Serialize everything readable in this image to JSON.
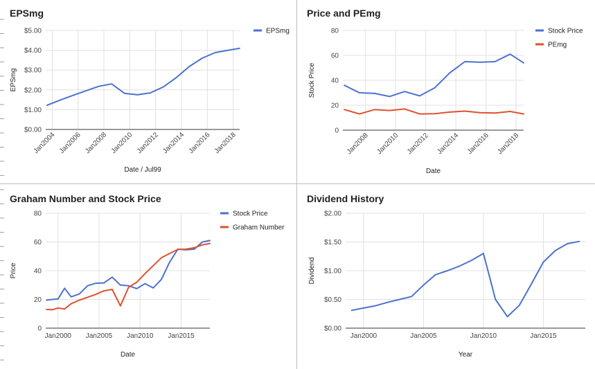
{
  "charts": [
    {
      "title": "EPSmg",
      "chart_data": {
        "type": "line",
        "xlabel": "Date / Jul99",
        "ylabel": "EPSmg",
        "x_ticks": [
          "Jan2004",
          "Jan2006",
          "Jan2008",
          "Jan2010",
          "Jan2012",
          "Jan2014",
          "Jan2016",
          "Jan2018"
        ],
        "x_tick_values": [
          2004,
          2006,
          2008,
          2010,
          2012,
          2014,
          2016,
          2018
        ],
        "y_ticks": [
          "$0.00",
          "$1.00",
          "$2.00",
          "$3.00",
          "$4.00",
          "$5.00"
        ],
        "y_tick_values": [
          0,
          1,
          2,
          3,
          4,
          5
        ],
        "xlim": [
          2003.5,
          2018.5
        ],
        "ylim": [
          0,
          5
        ],
        "legend_position": "top-right",
        "series": [
          {
            "name": "EPSmg",
            "color": "#4a72cf",
            "x": [
              2003.6,
              2004.6,
              2005.6,
              2006.6,
              2007.6,
              2008.6,
              2009.6,
              2010.6,
              2011.6,
              2012.6,
              2013.6,
              2014.6,
              2015.6,
              2016.6,
              2017.6,
              2018.5
            ],
            "y": [
              1.22,
              1.48,
              1.72,
              1.95,
              2.18,
              2.3,
              1.82,
              1.75,
              1.85,
              2.15,
              2.62,
              3.18,
              3.6,
              3.88,
              4.0,
              4.1
            ]
          }
        ]
      }
    },
    {
      "title": "Price and PEmg",
      "chart_data": {
        "type": "line",
        "xlabel": "Date",
        "ylabel": "Stock Price",
        "x_ticks": [
          "Jan2008",
          "Jan2010",
          "Jan2012",
          "Jan2014",
          "Jan2016",
          "Jan2018"
        ],
        "x_tick_values": [
          2008,
          2010,
          2012,
          2014,
          2016,
          2018
        ],
        "y_ticks": [
          "0",
          "20",
          "40",
          "60",
          "80"
        ],
        "y_tick_values": [
          0,
          20,
          40,
          60,
          80
        ],
        "xlim": [
          2006.5,
          2018.5
        ],
        "ylim": [
          0,
          80
        ],
        "legend_position": "top-right",
        "series": [
          {
            "name": "Stock Price",
            "color": "#4a72cf",
            "x": [
              2006.6,
              2007.6,
              2008.6,
              2009.6,
              2010.6,
              2011.6,
              2012.6,
              2013.6,
              2014.6,
              2015.6,
              2016.6,
              2017.6,
              2018.5
            ],
            "y": [
              36,
              30,
              29.5,
              27,
              31,
              27.5,
              34,
              46,
              55,
              54.5,
              55,
              61,
              54
            ]
          },
          {
            "name": "PEmg",
            "color": "#e0502d",
            "x": [
              2006.6,
              2007.6,
              2008.6,
              2009.6,
              2010.6,
              2011.6,
              2012.6,
              2013.6,
              2014.6,
              2015.6,
              2016.6,
              2017.6,
              2018.5
            ],
            "y": [
              16.5,
              13,
              16.5,
              15.8,
              17,
              13,
              13.2,
              14.5,
              15.3,
              14,
              13.8,
              15,
              13
            ]
          }
        ]
      }
    },
    {
      "title": "Graham Number and Stock Price",
      "chart_data": {
        "type": "line",
        "xlabel": "Date",
        "ylabel": "Price",
        "x_ticks": [
          "Jan2000",
          "Jan2005",
          "Jan2010",
          "Jan2015"
        ],
        "x_tick_values": [
          2000,
          2005,
          2010,
          2015
        ],
        "y_ticks": [
          "0",
          "20",
          "40",
          "60",
          "80"
        ],
        "y_tick_values": [
          0,
          20,
          40,
          60,
          80
        ],
        "xlim": [
          1998.5,
          2018.5
        ],
        "ylim": [
          0,
          80
        ],
        "legend_position": "top-right",
        "series": [
          {
            "name": "Stock Price",
            "color": "#4a72cf",
            "x": [
              1998.6,
              1999.3,
              2000,
              2000.8,
              2001.6,
              2002.6,
              2003.6,
              2004.6,
              2005.6,
              2006.6,
              2007.6,
              2008.6,
              2009.6,
              2010.6,
              2011.6,
              2012.6,
              2013.6,
              2014.6,
              2015.6,
              2016.6,
              2017.6,
              2018.5
            ],
            "y": [
              19.5,
              20,
              20.3,
              27.8,
              21.8,
              23.8,
              29.5,
              31.3,
              31.5,
              35.5,
              30,
              29.5,
              27.5,
              31,
              28,
              34,
              46,
              55,
              54.5,
              55,
              60,
              61
            ]
          },
          {
            "name": "Graham Number",
            "color": "#e0502d",
            "x": [
              1998.6,
              1999.3,
              2000,
              2000.8,
              2001.6,
              2002.6,
              2003.6,
              2004.6,
              2005.6,
              2006.6,
              2007.6,
              2008.6,
              2009.6,
              2010.6,
              2011.6,
              2012.6,
              2013.6,
              2014.6,
              2015.6,
              2016.6,
              2017.6,
              2018.5
            ],
            "y": [
              13,
              12.8,
              14,
              13.3,
              17,
              19.5,
              21.5,
              23.5,
              26,
              27,
              15.5,
              28.5,
              32,
              38,
              43.5,
              49,
              52,
              54.8,
              55,
              56,
              58,
              59
            ]
          }
        ]
      }
    },
    {
      "title": "Dividend History",
      "chart_data": {
        "type": "line",
        "xlabel": "Year",
        "ylabel": "Dividend",
        "x_ticks": [
          "Jan2000",
          "Jan2005",
          "Jan2010",
          "Jan2015"
        ],
        "x_tick_values": [
          2000,
          2005,
          2010,
          2015
        ],
        "y_ticks": [
          "$0.00",
          "$0.50",
          "$1.00",
          "$1.50",
          "$2.00"
        ],
        "y_tick_values": [
          0,
          0.5,
          1,
          1.5,
          2
        ],
        "xlim": [
          1998.5,
          2018.5
        ],
        "ylim": [
          0,
          2
        ],
        "series": [
          {
            "name": "Dividend",
            "color": "#4a72cf",
            "x": [
              1999,
              2000,
              2001,
              2002,
              2003,
              2004,
              2005,
              2006,
              2007,
              2008,
              2009,
              2010,
              2011,
              2012,
              2013,
              2014,
              2015,
              2016,
              2017,
              2018
            ],
            "y": [
              0.31,
              0.35,
              0.39,
              0.45,
              0.5,
              0.55,
              0.75,
              0.93,
              1.0,
              1.08,
              1.18,
              1.3,
              0.5,
              0.2,
              0.4,
              0.77,
              1.15,
              1.35,
              1.47,
              1.51
            ]
          }
        ]
      }
    }
  ]
}
